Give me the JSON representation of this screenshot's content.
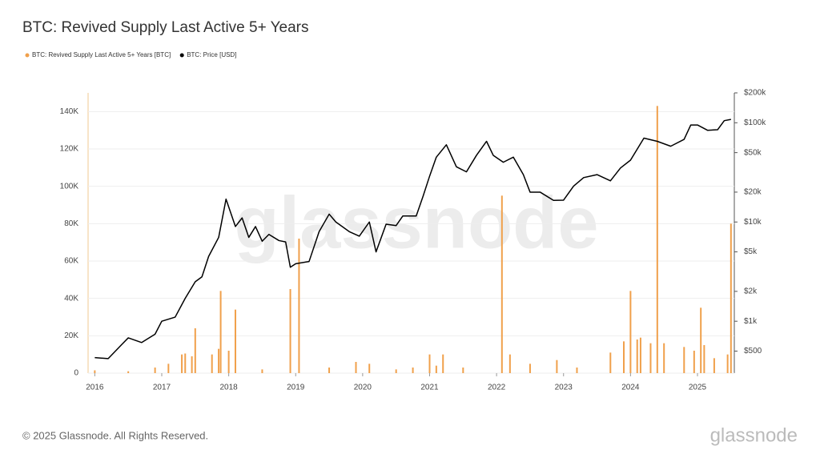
{
  "chart_data": {
    "type": "bar-line",
    "title": "BTC: Revived Supply Last Active 5+ Years",
    "watermark": "glassnode",
    "footer": "© 2025 Glassnode. All Rights Reserved.",
    "logo": "glassnode",
    "xlim": [
      2015.9,
      2025.55
    ],
    "xticks": [
      2016,
      2017,
      2018,
      2019,
      2020,
      2021,
      2022,
      2023,
      2024,
      2025
    ],
    "ylim": [
      0,
      150000
    ],
    "yticks": [
      {
        "value": 0,
        "label": "0"
      },
      {
        "value": 20000,
        "label": "20K"
      },
      {
        "value": 40000,
        "label": "40K"
      },
      {
        "value": 60000,
        "label": "60K"
      },
      {
        "value": 80000,
        "label": "80K"
      },
      {
        "value": 100000,
        "label": "100K"
      },
      {
        "value": 120000,
        "label": "120K"
      },
      {
        "value": 140000,
        "label": "140K"
      }
    ],
    "y2lim": [
      300,
      200000
    ],
    "y2log": true,
    "y2ticks": [
      {
        "value": 500,
        "label": "$500"
      },
      {
        "value": 1000,
        "label": "$1k"
      },
      {
        "value": 2000,
        "label": "$2k"
      },
      {
        "value": 5000,
        "label": "$5k"
      },
      {
        "value": 10000,
        "label": "$10k"
      },
      {
        "value": 20000,
        "label": "$20k"
      },
      {
        "value": 50000,
        "label": "$50k"
      },
      {
        "value": 100000,
        "label": "$100k"
      },
      {
        "value": 200000,
        "label": "$200k"
      }
    ],
    "grid": true,
    "series": [
      {
        "name": "BTC: Revived Supply Last Active 5+ Years [BTC]",
        "color": "#f0a04b",
        "axis": "y",
        "x": [
          2016.0,
          2016.5,
          2016.9,
          2017.1,
          2017.3,
          2017.35,
          2017.45,
          2017.5,
          2017.75,
          2017.85,
          2017.88,
          2018.0,
          2018.1,
          2018.5,
          2018.92,
          2019.05,
          2019.5,
          2019.9,
          2020.1,
          2020.5,
          2020.75,
          2021.0,
          2021.1,
          2021.2,
          2021.5,
          2022.08,
          2022.2,
          2022.5,
          2022.9,
          2023.2,
          2023.7,
          2023.9,
          2024.0,
          2024.1,
          2024.15,
          2024.3,
          2024.4,
          2024.5,
          2024.8,
          2024.95,
          2025.05,
          2025.1,
          2025.25,
          2025.45,
          2025.5
        ],
        "values": [
          1500,
          1000,
          3000,
          5000,
          10000,
          10500,
          9000,
          24000,
          10000,
          13000,
          44000,
          12000,
          34000,
          2000,
          45000,
          72000,
          3000,
          6000,
          5000,
          2000,
          3000,
          10000,
          4000,
          10000,
          3000,
          95000,
          10000,
          5000,
          7000,
          3000,
          11000,
          17000,
          44000,
          18000,
          19000,
          16000,
          143000,
          16000,
          14000,
          12000,
          35000,
          15000,
          8000,
          10000,
          80000
        ]
      },
      {
        "name": "BTC: Price [USD]",
        "color": "#000000",
        "axis": "y2",
        "x": [
          2016.0,
          2016.2,
          2016.4,
          2016.5,
          2016.7,
          2016.9,
          2017.0,
          2017.2,
          2017.35,
          2017.5,
          2017.6,
          2017.7,
          2017.85,
          2017.96,
          2018.1,
          2018.2,
          2018.3,
          2018.4,
          2018.5,
          2018.6,
          2018.75,
          2018.85,
          2018.92,
          2019.0,
          2019.2,
          2019.35,
          2019.5,
          2019.6,
          2019.8,
          2019.95,
          2020.1,
          2020.2,
          2020.35,
          2020.5,
          2020.6,
          2020.8,
          2020.9,
          2021.0,
          2021.1,
          2021.25,
          2021.4,
          2021.55,
          2021.7,
          2021.85,
          2021.95,
          2022.1,
          2022.25,
          2022.4,
          2022.5,
          2022.65,
          2022.85,
          2023.0,
          2023.15,
          2023.3,
          2023.5,
          2023.7,
          2023.85,
          2024.0,
          2024.2,
          2024.4,
          2024.6,
          2024.8,
          2024.9,
          2025.0,
          2025.15,
          2025.3,
          2025.4,
          2025.5
        ],
        "values": [
          430,
          420,
          580,
          680,
          610,
          740,
          1000,
          1100,
          1700,
          2500,
          2800,
          4500,
          7000,
          17000,
          9000,
          11000,
          7000,
          9000,
          6400,
          7500,
          6500,
          6300,
          3500,
          3800,
          4000,
          8000,
          12000,
          10000,
          8000,
          7200,
          10000,
          5000,
          9500,
          9200,
          11500,
          11500,
          18000,
          29000,
          45000,
          60000,
          36000,
          32000,
          47000,
          65000,
          47000,
          40000,
          45000,
          30000,
          20000,
          20000,
          16500,
          16600,
          23000,
          28000,
          30000,
          26000,
          35000,
          42000,
          70000,
          65000,
          58000,
          68000,
          95000,
          95000,
          84000,
          85000,
          105000,
          108000
        ]
      }
    ]
  }
}
